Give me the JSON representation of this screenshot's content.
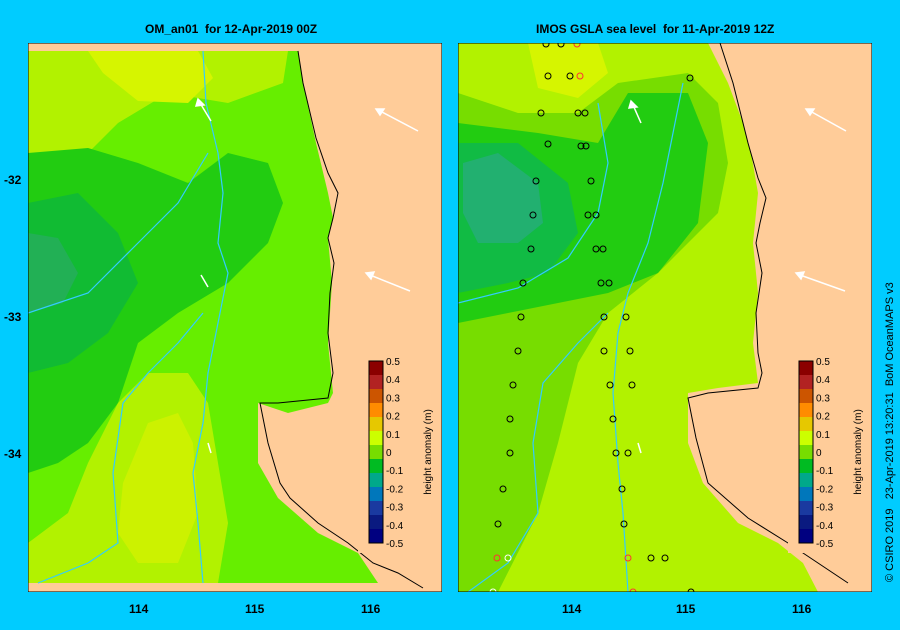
{
  "left_panel": {
    "title": "OM_an01  for 12-Apr-2019 00Z"
  },
  "right_panel": {
    "title": "IMOS GSLA sea level  for 11-Apr-2019 12Z"
  },
  "axes": {
    "y_ticks": [
      "-32",
      "-33",
      "-34"
    ],
    "x_ticks": [
      "114",
      "115",
      "116"
    ]
  },
  "colorbar": {
    "label": "height anomaly (m)",
    "ticks": [
      "0.5",
      "0.4",
      "0.3",
      "0.2",
      "0.1",
      "0",
      "-0.1",
      "-0.2",
      "-0.3",
      "-0.4",
      "-0.5"
    ],
    "colors": [
      "#8b0000",
      "#b22222",
      "#cc5500",
      "#ff8c00",
      "#e6c800",
      "#ccff00",
      "#77dd00",
      "#00bb22",
      "#00a88a",
      "#0077bb",
      "#1a3aa0",
      "#0a1a80",
      "#000080"
    ]
  },
  "credit": "© CSIRO 2019   23-Apr-2019 13:20:31  BoM OceanMAPS v3",
  "colors": {
    "frame": "#00ccff",
    "land": "#ffcc99",
    "coast": "#000000",
    "bathy": "#33ccff"
  }
}
